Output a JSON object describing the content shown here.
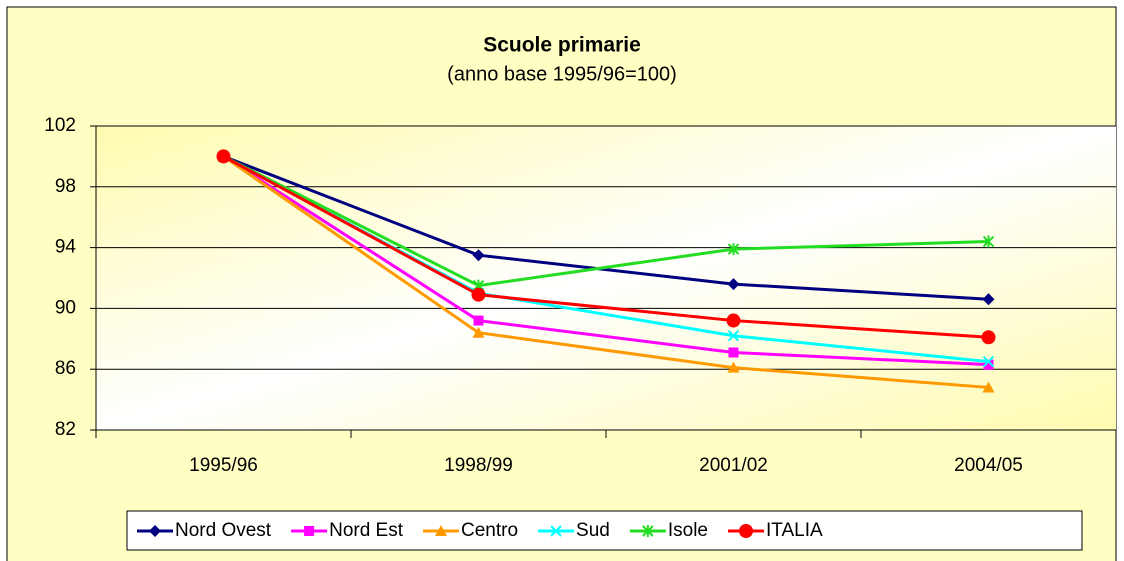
{
  "chart_data": {
    "type": "line",
    "title": "Scuole primarie",
    "subtitle": "(anno base 1995/96=100)",
    "categories": [
      "1995/96",
      "1998/99",
      "2001/02",
      "2004/05"
    ],
    "series": [
      {
        "name": "Nord Ovest",
        "color": "#000080",
        "marker": "diamond",
        "values": [
          100,
          93.5,
          91.6,
          90.6
        ]
      },
      {
        "name": "Nord Est",
        "color": "#ff00ff",
        "marker": "square",
        "values": [
          100,
          89.2,
          87.1,
          86.3
        ]
      },
      {
        "name": "Centro",
        "color": "#ff9900",
        "marker": "triangle",
        "values": [
          100,
          88.4,
          86.1,
          84.8
        ]
      },
      {
        "name": "Sud",
        "color": "#00ffff",
        "marker": "x",
        "values": [
          100,
          91.0,
          88.2,
          86.5
        ]
      },
      {
        "name": "Isole",
        "color": "#22dd22",
        "marker": "asterisk",
        "values": [
          100,
          91.5,
          93.9,
          94.4
        ]
      },
      {
        "name": "ITALIA",
        "color": "#ff0000",
        "marker": "circle",
        "values": [
          100,
          90.9,
          89.2,
          88.1
        ]
      }
    ],
    "ylim": [
      82,
      102
    ],
    "yticks": [
      82,
      86,
      90,
      94,
      98,
      102
    ],
    "grid": true,
    "legend": "bottom"
  }
}
